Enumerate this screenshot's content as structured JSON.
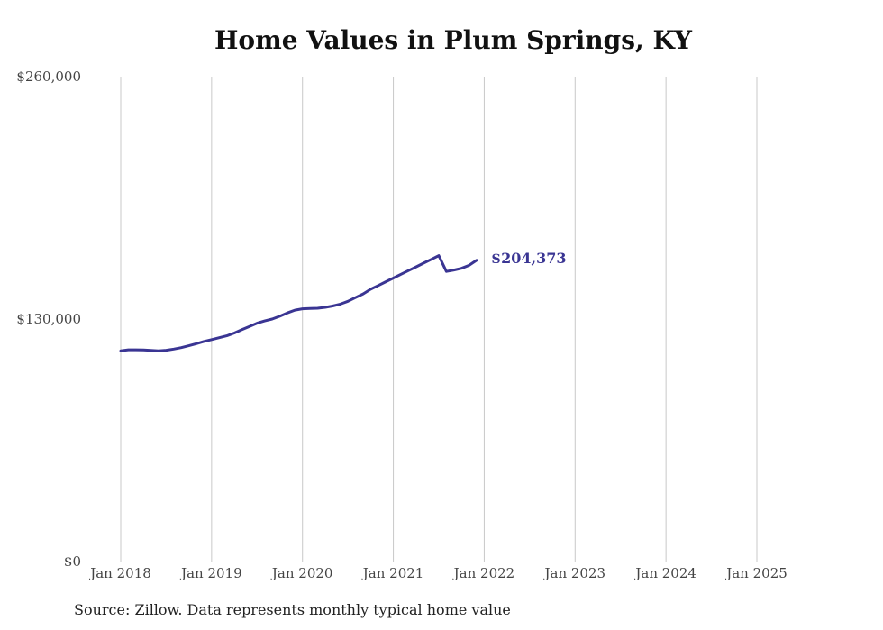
{
  "chart_data": {
    "type": "line",
    "title": "Home Values in Plum Springs, KY",
    "xlabel": "",
    "ylabel": "",
    "ylim": [
      0,
      260000
    ],
    "y_ticks": [
      "$0",
      "$130,000",
      "$260,000"
    ],
    "y_tick_values": [
      0,
      130000,
      260000
    ],
    "x_ticks": [
      "Jan 2018",
      "Jan 2019",
      "Jan 2020",
      "Jan 2021",
      "Jan 2022",
      "Jan 2023",
      "Jan 2024",
      "Jan 2025"
    ],
    "grid": "vertical",
    "series": [
      {
        "color": "#3a3593",
        "end_label": "$204,373",
        "points": [
          [
            "2018-01",
            113000
          ],
          [
            "2018-02",
            113500
          ],
          [
            "2018-03",
            113500
          ],
          [
            "2018-04",
            113400
          ],
          [
            "2018-05",
            113200
          ],
          [
            "2018-06",
            113000
          ],
          [
            "2018-07",
            113300
          ],
          [
            "2018-08",
            113900
          ],
          [
            "2018-09",
            114700
          ],
          [
            "2018-10",
            115700
          ],
          [
            "2018-11",
            116800
          ],
          [
            "2018-12",
            118000
          ],
          [
            "2019-01",
            119000
          ],
          [
            "2019-02",
            120000
          ],
          [
            "2019-03",
            121000
          ],
          [
            "2019-04",
            122500
          ],
          [
            "2019-05",
            124300
          ],
          [
            "2019-06",
            126000
          ],
          [
            "2019-07",
            127800
          ],
          [
            "2019-08",
            129000
          ],
          [
            "2019-09",
            130000
          ],
          [
            "2019-10",
            131500
          ],
          [
            "2019-11",
            133300
          ],
          [
            "2019-12",
            134800
          ],
          [
            "2020-01",
            135500
          ],
          [
            "2020-02",
            135700
          ],
          [
            "2020-03",
            135800
          ],
          [
            "2020-04",
            136300
          ],
          [
            "2020-05",
            137000
          ],
          [
            "2020-06",
            138000
          ],
          [
            "2020-07",
            139500
          ],
          [
            "2020-08",
            141500
          ],
          [
            "2020-09",
            143500
          ],
          [
            "2020-10",
            146000
          ],
          [
            "2020-11",
            148000
          ],
          [
            "2020-12",
            150000
          ],
          [
            "2021-01",
            152000
          ],
          [
            "2021-02",
            154000
          ],
          [
            "2021-03",
            156000
          ],
          [
            "2021-04",
            158000
          ],
          [
            "2021-05",
            160000
          ],
          [
            "2021-06",
            162000
          ],
          [
            "2021-07",
            164000
          ],
          [
            "2021-08",
            155500
          ],
          [
            "2021-09",
            156300
          ],
          [
            "2021-10",
            157200
          ],
          [
            "2021-11",
            158800
          ],
          [
            "2021-12",
            161500
          ]
        ]
      }
    ]
  },
  "source_note": "Source: Zillow. Data represents monthly typical home value"
}
